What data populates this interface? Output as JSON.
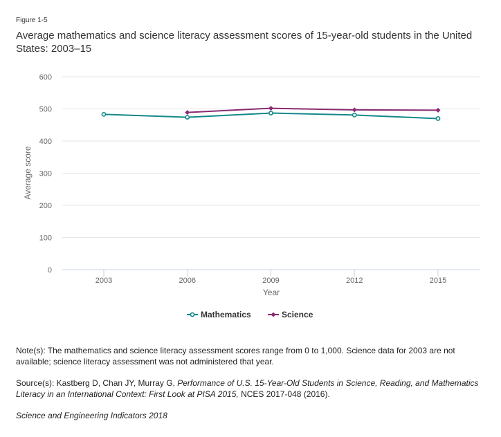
{
  "figure_label": "Figure 1-5",
  "title": "Average mathematics and science literacy assessment scores of 15-year-old students in the United States: 2003–15",
  "chart_data": {
    "type": "line",
    "title": "Average mathematics and science literacy assessment scores of 15-year-old students in the United States: 2003–15",
    "xlabel": "Year",
    "ylabel": "Average score",
    "categories": [
      "2003",
      "2006",
      "2009",
      "2012",
      "2015"
    ],
    "ylim": [
      0,
      600
    ],
    "yticks": [
      0,
      100,
      200,
      300,
      400,
      500,
      600
    ],
    "grid": true,
    "legend_position": "bottom-center",
    "series": [
      {
        "name": "Mathematics",
        "color": "#12888a",
        "marker": "circle",
        "values": [
          483,
          474,
          487,
          481,
          470
        ]
      },
      {
        "name": "Science",
        "color": "#8b2a72",
        "marker": "diamond",
        "values": [
          null,
          489,
          502,
          497,
          496
        ]
      }
    ]
  },
  "notes": {
    "note": "Note(s): The mathematics and science literacy assessment scores range from 0 to 1,000. Science data for 2003 are not available; science literacy assessment was not administered that year.",
    "source_prefix": "Source(s): Kastberg D, Chan JY, Murray G, ",
    "source_title": "Performance of U.S. 15-Year-Old Students in Science, Reading, and Mathematics Literacy in an International Context: First Look at PISA 2015,",
    "source_suffix": " NCES 2017-048 (2016).",
    "footer": "Science and Engineering Indicators 2018"
  }
}
